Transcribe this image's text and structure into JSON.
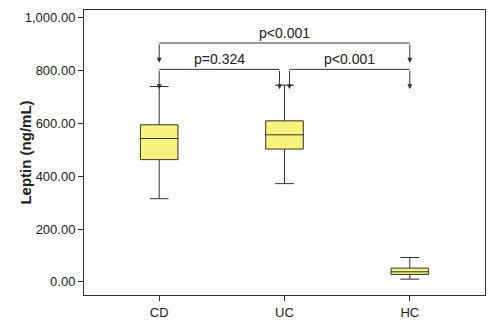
{
  "chart_data": {
    "type": "box",
    "y_label": "Leptin (ng/mL)",
    "categories": [
      "CD",
      "UC",
      "HC"
    ],
    "min": [
      315,
      372,
      10
    ],
    "q1": [
      463,
      503,
      28
    ],
    "median": [
      543,
      557,
      38
    ],
    "q3": [
      595,
      610,
      52
    ],
    "max": [
      740,
      745,
      92
    ],
    "color": "#f7f27c",
    "ylim": [
      -50,
      1030
    ],
    "yticks": [
      {
        "value": 0,
        "label": "0.00"
      },
      {
        "value": 200,
        "label": "200.00"
      },
      {
        "value": 400,
        "label": "400.00"
      },
      {
        "value": 600,
        "label": "600.00"
      },
      {
        "value": 800,
        "label": "800.00"
      },
      {
        "value": 1000,
        "label": "1,000.00"
      }
    ],
    "grid": false,
    "annotations": [
      {
        "text": "p<0.001",
        "from": "CD",
        "to": "HC",
        "y": 905
      },
      {
        "text": "p=0.324",
        "from": "CD",
        "to": "UC",
        "y": 805
      },
      {
        "text": "p<0.001",
        "from": "UC",
        "to": "HC",
        "y": 805
      }
    ]
  }
}
